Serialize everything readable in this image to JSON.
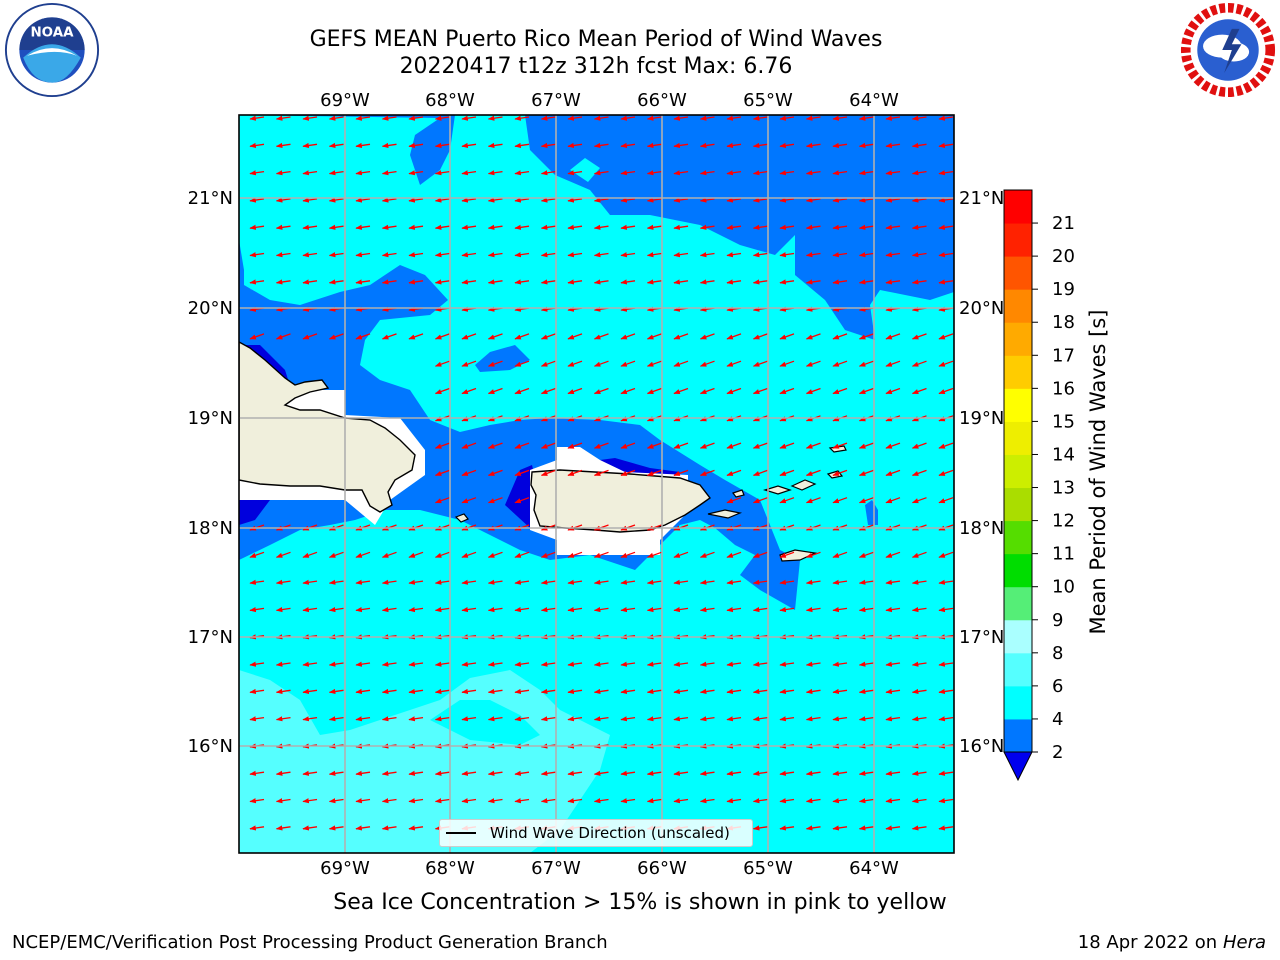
{
  "title": {
    "line1": "GEFS MEAN Puerto Rico Mean Period of Wind Waves",
    "line2": "20220417 t12z 312h fcst   Max: 6.76"
  },
  "logos": {
    "left": "noaa-logo",
    "right": "nws-logo"
  },
  "map": {
    "lon_labels": [
      "69°W",
      "68°W",
      "67°W",
      "66°W",
      "65°W",
      "64°W"
    ],
    "lat_labels": [
      "21°N",
      "20°N",
      "19°N",
      "18°N",
      "17°N",
      "16°N"
    ],
    "legend_label": "Wind Wave Direction (unscaled)",
    "ocean_colors": {
      "band_2_4": "#0077ff",
      "band_4_6": "#00ffff",
      "band_6_8": "#55ffff",
      "below_2": "#0000dd",
      "land": "#f0efdc",
      "arrow": "#ff0000"
    }
  },
  "colorbar": {
    "label": "Mean Period of Wind Waves [s]",
    "ticks": [
      "2",
      "4",
      "6",
      "8",
      "9",
      "10",
      "11",
      "12",
      "13",
      "14",
      "15",
      "16",
      "17",
      "18",
      "19",
      "20",
      "21"
    ],
    "colors": [
      "#0077ff",
      "#00ffff",
      "#55ffff",
      "#aaffff",
      "#55ee77",
      "#00dd00",
      "#55dd00",
      "#aadd00",
      "#ccee00",
      "#eeee00",
      "#ffff00",
      "#ffcc00",
      "#ffaa00",
      "#ff8800",
      "#ff5500",
      "#ff2200",
      "#ff0000"
    ],
    "under_color": "#0000ee"
  },
  "footer": {
    "note": "Sea Ice Concentration > 15% is shown in pink to yellow",
    "left": "NCEP/EMC/Verification Post Processing Product Generation Branch",
    "right_prefix": "18 Apr 2022 on ",
    "right_host": "Hera"
  }
}
